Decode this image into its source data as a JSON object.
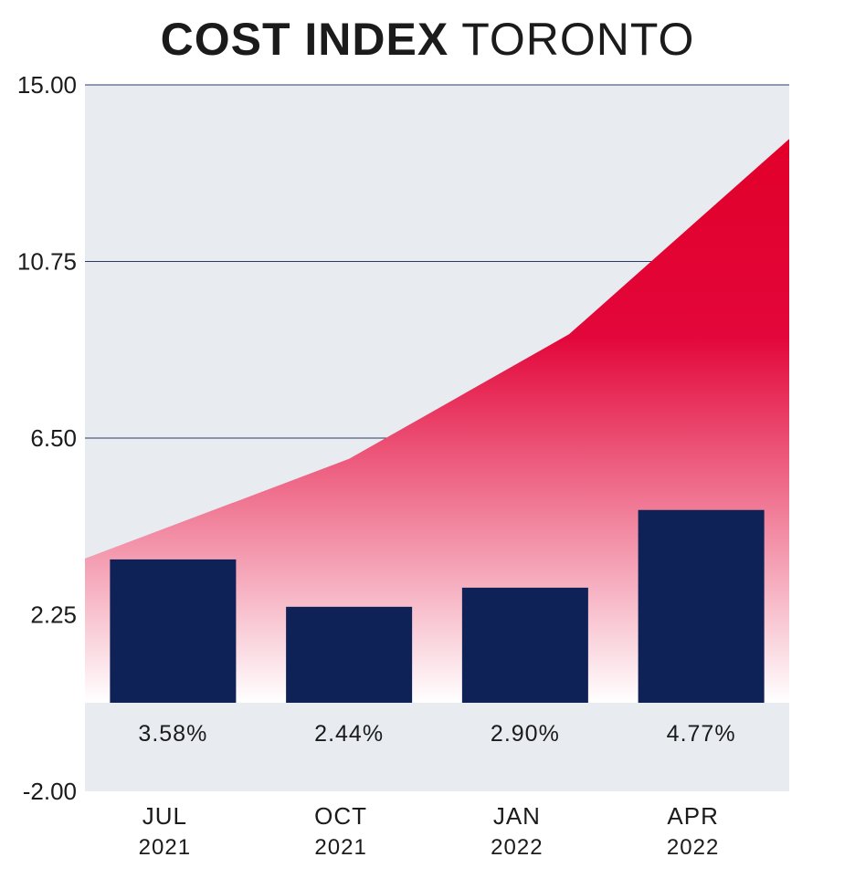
{
  "chart_data": {
    "type": "bar",
    "title_bold": "COST INDEX",
    "title_light": "TORONTO",
    "categories": [
      "JUL",
      "OCT",
      "JAN",
      "APR"
    ],
    "category_years": [
      "2021",
      "2021",
      "2022",
      "2022"
    ],
    "values": [
      3.58,
      2.44,
      2.9,
      4.77
    ],
    "value_labels": [
      "3.58%",
      "2.44%",
      "2.90%",
      "4.77%"
    ],
    "area_series": {
      "values": [
        3.6,
        6.0,
        9.0,
        13.7
      ]
    },
    "yticks": [
      15.0,
      10.75,
      6.5,
      2.25,
      -2.0
    ],
    "ytick_labels": [
      "15.00",
      "10.75",
      "6.50",
      "2.25",
      "-2.00"
    ],
    "ylim": [
      -2.0,
      15.0
    ],
    "grid": true,
    "colors": {
      "bar": "#0e2257",
      "area_top": "#e2002a",
      "area_bottom": "#ffffff",
      "plot_background": "#e8ebf0",
      "gridline": "#2b3a67"
    }
  }
}
